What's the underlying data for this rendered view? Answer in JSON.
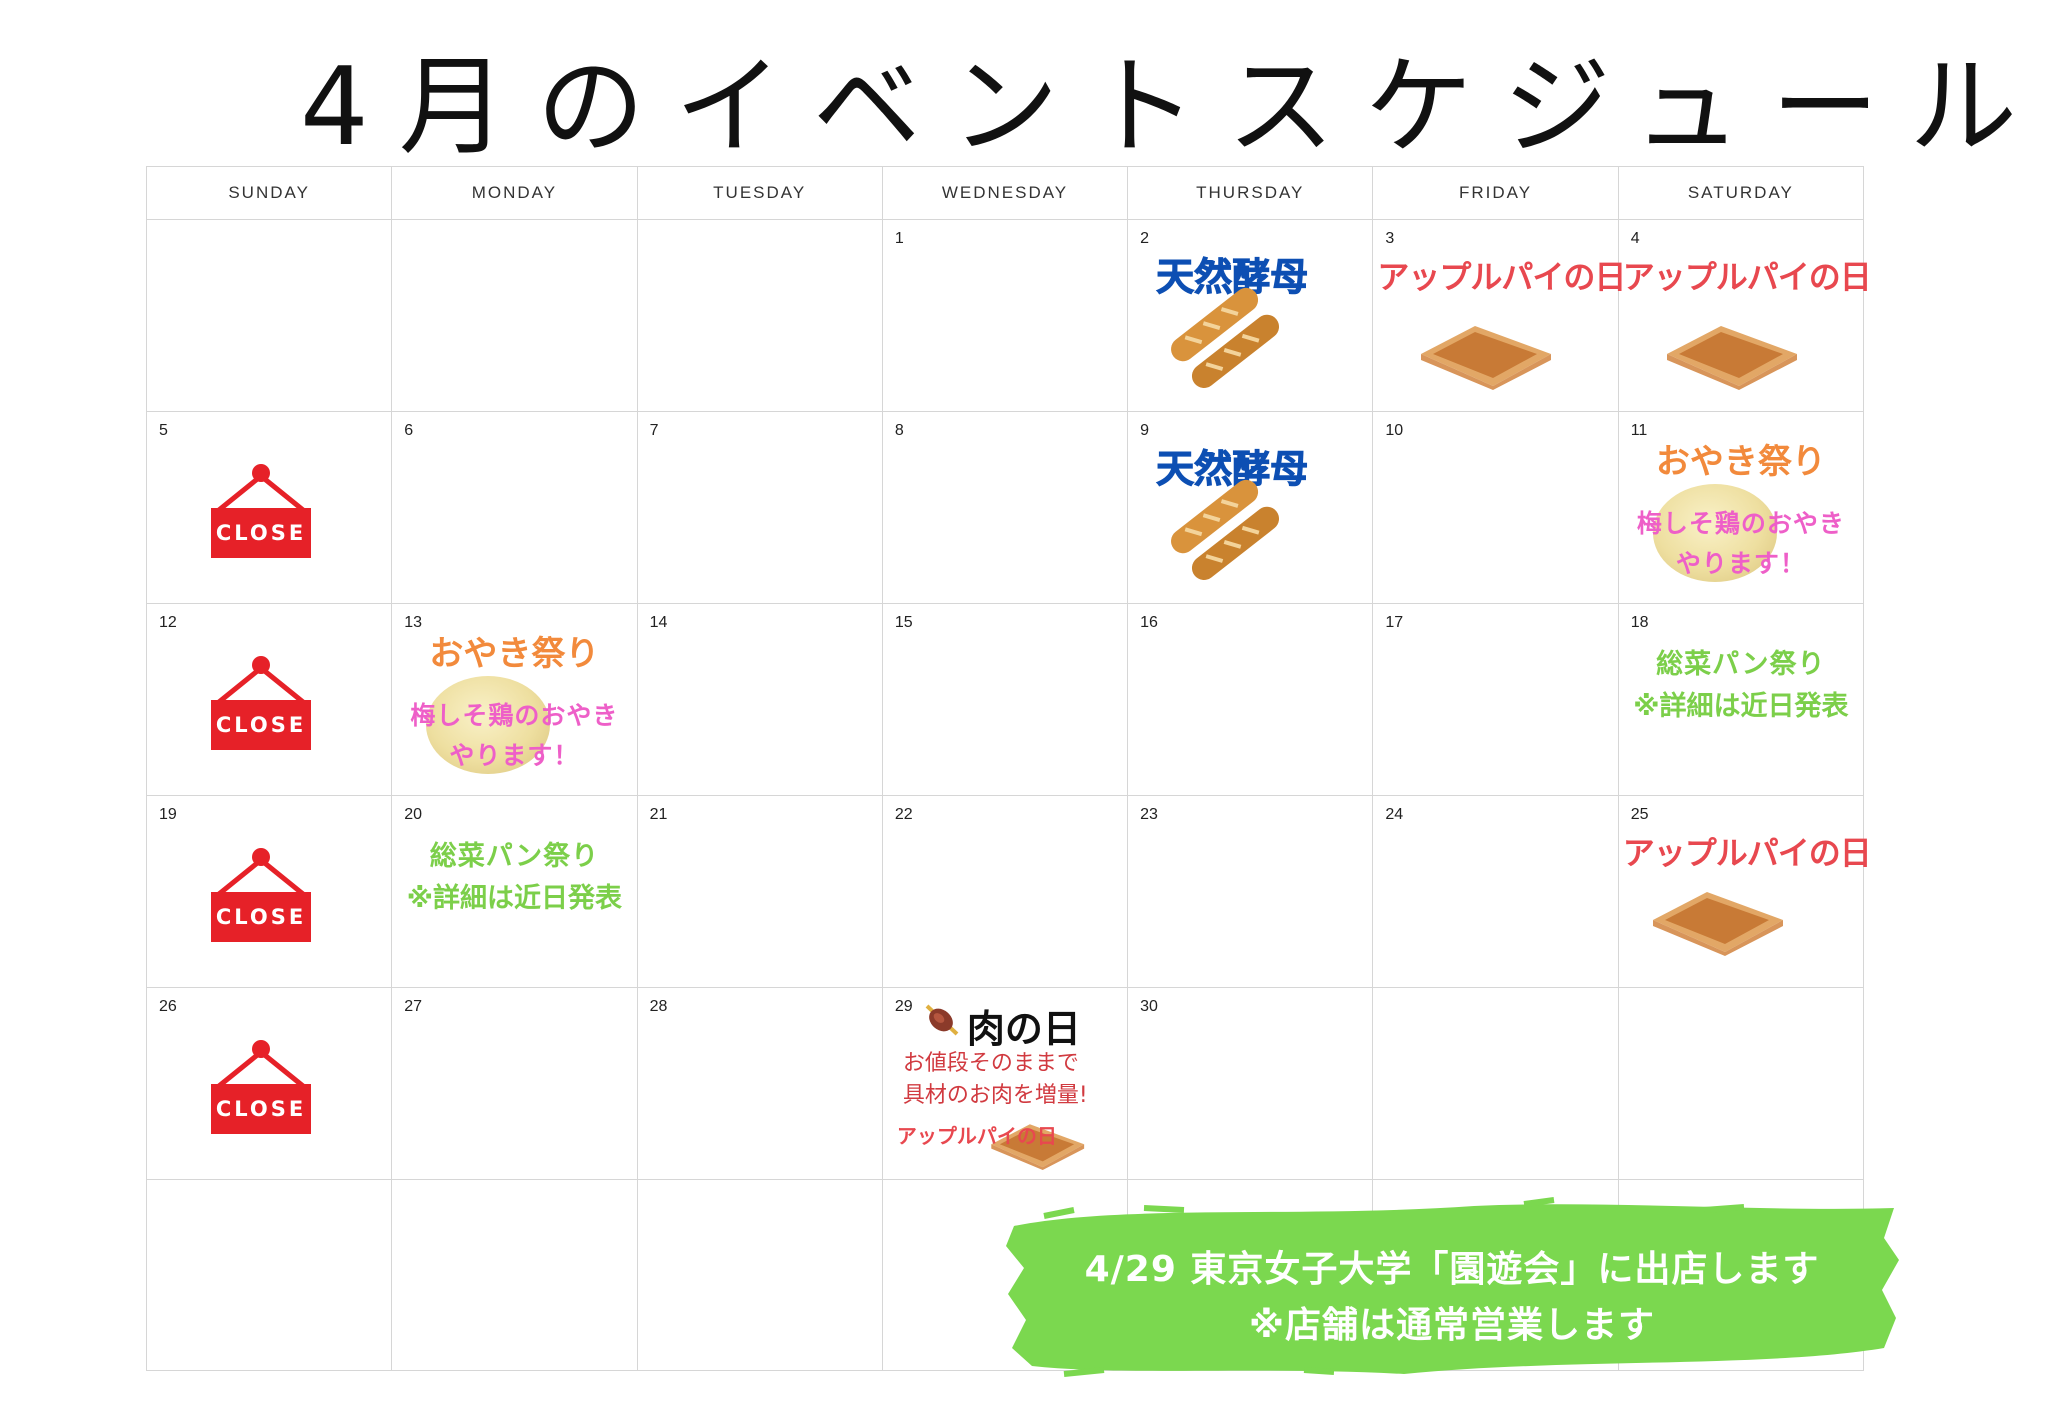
{
  "title": "4月のイベントスケジュール",
  "weekdays": [
    "SUNDAY",
    "MONDAY",
    "TUESDAY",
    "WEDNESDAY",
    "THURSDAY",
    "FRIDAY",
    "SATURDAY"
  ],
  "days": [
    "1",
    "2",
    "3",
    "4",
    "5",
    "6",
    "7",
    "8",
    "9",
    "10",
    "11",
    "12",
    "13",
    "14",
    "15",
    "16",
    "17",
    "18",
    "19",
    "20",
    "21",
    "22",
    "23",
    "24",
    "25",
    "26",
    "27",
    "28",
    "29",
    "30"
  ],
  "labels": {
    "close": "CLOSE",
    "yeast": "天然酵母",
    "apple": "アップルパイの日",
    "oyaki": "おやき祭り",
    "oyaki_line1": "梅しそ鶏のおやき",
    "oyaki_line2": "やります！",
    "sozai": "総菜パン祭り",
    "sozai_note": "※詳細は近日発表",
    "meat": "肉の日",
    "meat_line1": "お値段そのままで",
    "meat_line2": "具材のお肉を増量!"
  },
  "banner": {
    "line1": "4/29  東京女子大学「園遊会」に出店します",
    "line2": "※店舗は通常営業します"
  },
  "colors": {
    "close_red": "#e62128",
    "yeast_blue": "#0d4fb3",
    "apple_red": "#e8484f",
    "oyaki_orange": "#f28a3c",
    "oyaki_pink": "#ee5fc8",
    "sozai_green": "#7ccf4a",
    "banner_green": "#7bd84f"
  }
}
